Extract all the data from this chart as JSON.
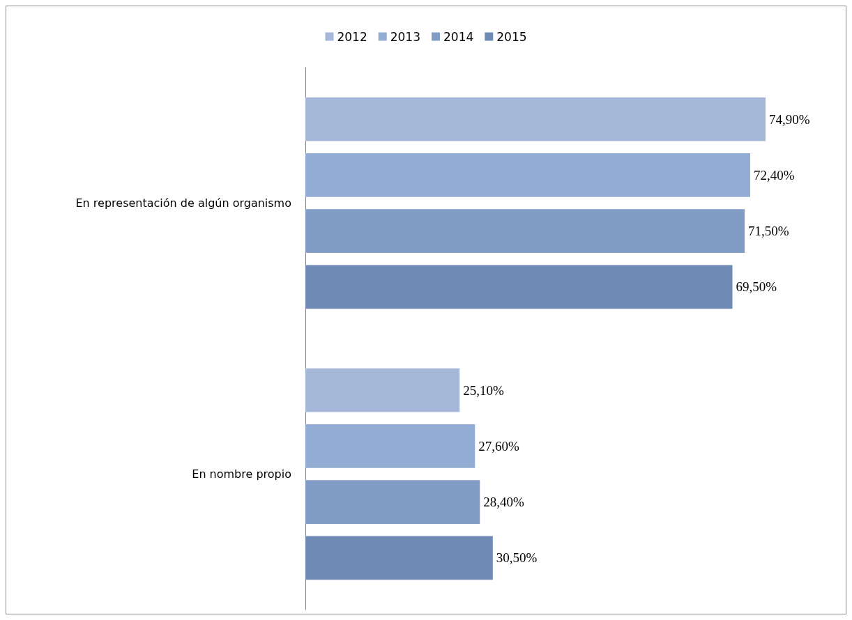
{
  "chart_data": {
    "type": "bar",
    "orientation": "horizontal",
    "categories": [
      "En representación de algún organismo",
      "En nombre propio"
    ],
    "series": [
      {
        "name": "2012",
        "color": "#a5b8da",
        "values": [
          74.9,
          25.1
        ],
        "value_labels": [
          "74,90%",
          "25,10%"
        ]
      },
      {
        "name": "2013",
        "color": "#93acd4",
        "values": [
          72.4,
          27.6
        ],
        "value_labels": [
          "72,40%",
          "27,60%"
        ]
      },
      {
        "name": "2014",
        "color": "#819dc6",
        "values": [
          71.5,
          28.4
        ],
        "value_labels": [
          "71,50%",
          "28,40%"
        ]
      },
      {
        "name": "2015",
        "color": "#6f8bb5",
        "values": [
          69.5,
          30.5
        ],
        "value_labels": [
          "69,50%",
          "30,50%"
        ]
      }
    ],
    "legend": "top"
  }
}
